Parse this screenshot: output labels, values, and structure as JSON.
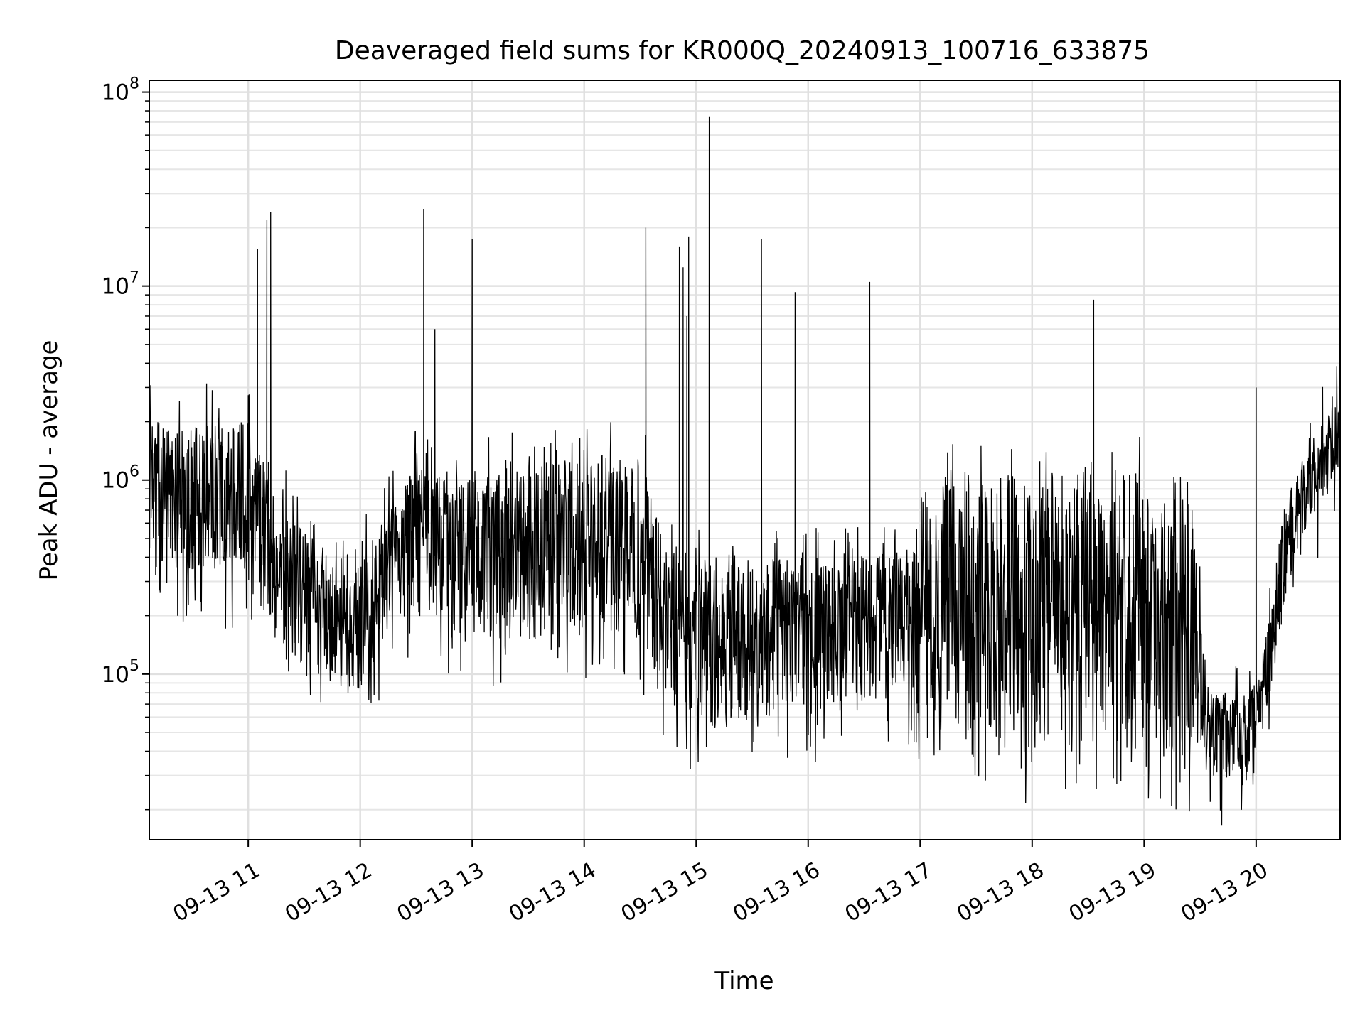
{
  "chart_data": {
    "type": "line",
    "title": "Deaveraged field sums for KR000Q_20240913_100716_633875",
    "xlabel": "Time",
    "ylabel": "Peak ADU - average",
    "yscale": "log",
    "xlim": [
      "2024-09-13 10:07",
      "2024-09-13 20:45"
    ],
    "ylim": [
      14000,
      115000000
    ],
    "grid": "major and minor, both axes",
    "line_color": "#000000",
    "x_ticks": [
      {
        "t": "2024-09-13 11:00",
        "label": "09-13 11"
      },
      {
        "t": "2024-09-13 12:00",
        "label": "09-13 12"
      },
      {
        "t": "2024-09-13 13:00",
        "label": "09-13 13"
      },
      {
        "t": "2024-09-13 14:00",
        "label": "09-13 14"
      },
      {
        "t": "2024-09-13 15:00",
        "label": "09-13 15"
      },
      {
        "t": "2024-09-13 16:00",
        "label": "09-13 16"
      },
      {
        "t": "2024-09-13 17:00",
        "label": "09-13 17"
      },
      {
        "t": "2024-09-13 18:00",
        "label": "09-13 18"
      },
      {
        "t": "2024-09-13 19:00",
        "label": "09-13 19"
      },
      {
        "t": "2024-09-13 20:00",
        "label": "09-13 20"
      }
    ],
    "y_ticks": [
      {
        "value": 100000,
        "base": "10",
        "exp": "5"
      },
      {
        "value": 1000000,
        "base": "10",
        "exp": "6"
      },
      {
        "value": 10000000,
        "base": "10",
        "exp": "7"
      },
      {
        "value": 100000000,
        "base": "10",
        "exp": "8"
      }
    ],
    "baseline": [
      {
        "t": "2024-09-13 10:07",
        "low": 400000,
        "high": 2000000
      },
      {
        "t": "2024-09-13 10:30",
        "low": 300000,
        "high": 2000000
      },
      {
        "t": "2024-09-13 11:00",
        "low": 300000,
        "high": 2000000
      },
      {
        "t": "2024-09-13 11:15",
        "low": 150000,
        "high": 800000
      },
      {
        "t": "2024-09-13 11:30",
        "low": 100000,
        "high": 600000
      },
      {
        "t": "2024-09-13 11:55",
        "low": 70000,
        "high": 300000
      },
      {
        "t": "2024-09-13 12:15",
        "low": 150000,
        "high": 700000
      },
      {
        "t": "2024-09-13 12:30",
        "low": 200000,
        "high": 1200000
      },
      {
        "t": "2024-09-13 13:00",
        "low": 150000,
        "high": 1000000
      },
      {
        "t": "2024-09-13 13:30",
        "low": 150000,
        "high": 1200000
      },
      {
        "t": "2024-09-13 14:00",
        "low": 150000,
        "high": 1400000
      },
      {
        "t": "2024-09-13 14:30",
        "low": 150000,
        "high": 1300000
      },
      {
        "t": "2024-09-13 14:45",
        "low": 70000,
        "high": 500000
      },
      {
        "t": "2024-09-13 15:00",
        "low": 50000,
        "high": 400000
      },
      {
        "t": "2024-09-13 15:30",
        "low": 55000,
        "high": 400000
      },
      {
        "t": "2024-09-13 16:00",
        "low": 60000,
        "high": 400000
      },
      {
        "t": "2024-09-13 16:30",
        "low": 70000,
        "high": 400000
      },
      {
        "t": "2024-09-13 17:00",
        "low": 60000,
        "high": 500000
      },
      {
        "t": "2024-09-13 17:10",
        "low": 50000,
        "high": 1100000
      },
      {
        "t": "2024-09-13 17:30",
        "low": 40000,
        "high": 1200000
      },
      {
        "t": "2024-09-13 18:00",
        "low": 35000,
        "high": 1100000
      },
      {
        "t": "2024-09-13 18:30",
        "low": 40000,
        "high": 1100000
      },
      {
        "t": "2024-09-13 19:00",
        "low": 40000,
        "high": 1100000
      },
      {
        "t": "2024-09-13 19:25",
        "low": 30000,
        "high": 1000000
      },
      {
        "t": "2024-09-13 19:35",
        "low": 30000,
        "high": 80000
      },
      {
        "t": "2024-09-13 19:55",
        "low": 28000,
        "high": 70000
      },
      {
        "t": "2024-09-13 20:05",
        "low": 60000,
        "high": 150000
      },
      {
        "t": "2024-09-13 20:15",
        "low": 200000,
        "high": 800000
      },
      {
        "t": "2024-09-13 20:30",
        "low": 600000,
        "high": 1600000
      },
      {
        "t": "2024-09-13 20:45",
        "low": 1200000,
        "high": 2700000
      }
    ],
    "spikes": [
      {
        "t": "2024-09-13 11:05",
        "value": 15500000
      },
      {
        "t": "2024-09-13 11:10",
        "value": 22000000
      },
      {
        "t": "2024-09-13 11:12",
        "value": 24000000
      },
      {
        "t": "2024-09-13 12:34",
        "value": 25000000
      },
      {
        "t": "2024-09-13 12:40",
        "value": 6000000
      },
      {
        "t": "2024-09-13 13:00",
        "value": 17500000
      },
      {
        "t": "2024-09-13 14:33",
        "value": 20000000
      },
      {
        "t": "2024-09-13 14:51",
        "value": 16000000
      },
      {
        "t": "2024-09-13 14:53",
        "value": 12500000
      },
      {
        "t": "2024-09-13 14:55",
        "value": 7000000
      },
      {
        "t": "2024-09-13 14:56",
        "value": 18000000
      },
      {
        "t": "2024-09-13 15:07",
        "value": 75000000
      },
      {
        "t": "2024-09-13 15:35",
        "value": 17500000
      },
      {
        "t": "2024-09-13 15:53",
        "value": 9300000
      },
      {
        "t": "2024-09-13 16:33",
        "value": 10500000
      },
      {
        "t": "2024-09-13 18:33",
        "value": 8500000
      },
      {
        "t": "2024-09-13 20:00",
        "value": 3000000
      }
    ]
  }
}
